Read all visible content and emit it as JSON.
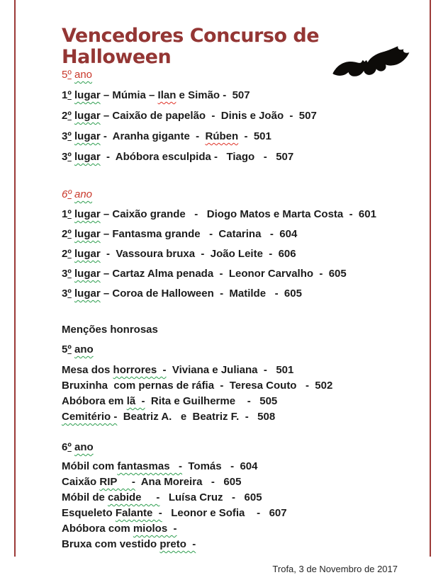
{
  "title": {
    "text": "Vencedores Concurso de Halloween"
  },
  "colors": {
    "title_maroon": "#943634",
    "heading_red": "#c9372a",
    "body_ink": "#1c1c1c",
    "border_red": "#9b3a38",
    "wavy_green": "#2e9e4f",
    "wavy_red": "#e03227"
  },
  "icons": {
    "bat": "bat-silhouette-icon"
  },
  "sections": [
    {
      "name": "vencedores-5-ano",
      "headings": [
        {
          "style": "h-red",
          "parts": [
            {
              "t": "5º ",
              "u": ""
            },
            {
              "t": "ano",
              "u": "green"
            }
          ]
        }
      ],
      "rows": [
        {
          "parts": [
            {
              "t": "1º ",
              "u": ""
            },
            {
              "t": "lugar",
              "u": "green"
            },
            {
              "t": " – Múmia – ",
              "u": ""
            },
            {
              "t": "Ilan",
              "u": "red"
            },
            {
              "t": " e Simão -  507",
              "u": ""
            }
          ]
        },
        {
          "parts": [
            {
              "t": "2º ",
              "u": ""
            },
            {
              "t": "lugar",
              "u": "green"
            },
            {
              "t": " – Caixão de papelão  -  Dinis e João  -  507",
              "u": ""
            }
          ]
        },
        {
          "parts": [
            {
              "t": "3º ",
              "u": ""
            },
            {
              "t": "lugar",
              "u": "green"
            },
            {
              "t": " -  Aranha gigante  -  ",
              "u": ""
            },
            {
              "t": "Rúben",
              "u": "red"
            },
            {
              "t": "  -  501",
              "u": ""
            }
          ]
        },
        {
          "parts": [
            {
              "t": "3º ",
              "u": ""
            },
            {
              "t": "lugar",
              "u": "green"
            },
            {
              "t": "  -  Abóbora esculpida -   Tiago   -   507",
              "u": ""
            }
          ]
        }
      ]
    },
    {
      "name": "vencedores-6-ano",
      "headings": [
        {
          "style": "h-red-italic",
          "parts": [
            {
              "t": "6º ",
              "u": ""
            },
            {
              "t": "ano",
              "u": "green"
            }
          ]
        }
      ],
      "rows": [
        {
          "parts": [
            {
              "t": "1º ",
              "u": ""
            },
            {
              "t": "lugar",
              "u": "green"
            },
            {
              "t": " – Caixão grande   -   Diogo Matos e Marta Costa  -  601",
              "u": ""
            }
          ]
        },
        {
          "parts": [
            {
              "t": "2º ",
              "u": ""
            },
            {
              "t": "lugar",
              "u": "green"
            },
            {
              "t": " – Fantasma grande   -  Catarina   -  604",
              "u": ""
            }
          ]
        },
        {
          "parts": [
            {
              "t": "2º ",
              "u": ""
            },
            {
              "t": "lugar",
              "u": "green"
            },
            {
              "t": "  -  Vassoura bruxa  -  João Leite  -  606",
              "u": ""
            }
          ]
        },
        {
          "parts": [
            {
              "t": "3º ",
              "u": ""
            },
            {
              "t": "lugar",
              "u": "green"
            },
            {
              "t": " – Cartaz Alma penada  -  Leonor Carvalho  -  605",
              "u": ""
            }
          ]
        },
        {
          "parts": [
            {
              "t": "3º ",
              "u": ""
            },
            {
              "t": "lugar",
              "u": "green"
            },
            {
              "t": " – Coroa de Halloween  -  Matilde   -  605",
              "u": ""
            }
          ]
        }
      ]
    },
    {
      "name": "mencoes-honrosas-5-ano",
      "headings": [
        {
          "style": "h-black",
          "parts": [
            {
              "t": "Menções honrosas",
              "u": ""
            }
          ]
        },
        {
          "style": "h-black",
          "parts": [
            {
              "t": "5º ",
              "u": ""
            },
            {
              "t": "ano",
              "u": "green"
            }
          ]
        }
      ],
      "rows": [
        {
          "parts": [
            {
              "t": "Mesa dos ",
              "u": ""
            },
            {
              "t": "horrores  -",
              "u": "green"
            },
            {
              "t": "  Viviana e Juliana  -   501",
              "u": ""
            }
          ]
        },
        {
          "parts": [
            {
              "t": "Bruxinha  com pernas de ráfia  -  Teresa Couto   -  502",
              "u": ""
            }
          ]
        },
        {
          "parts": [
            {
              "t": "Abóbora em ",
              "u": ""
            },
            {
              "t": "lã  -",
              "u": "green"
            },
            {
              "t": "  Rita e Guilherme    -   505",
              "u": ""
            }
          ]
        },
        {
          "parts": [
            {
              "t": "Cemitério -",
              "u": "green"
            },
            {
              "t": "  Beatriz A.   e  Beatriz F.  -   508",
              "u": ""
            }
          ]
        }
      ]
    },
    {
      "name": "mencoes-honrosas-6-ano",
      "headings": [
        {
          "style": "h-black",
          "parts": [
            {
              "t": "6º ",
              "u": ""
            },
            {
              "t": "ano",
              "u": "green"
            }
          ]
        }
      ],
      "rows": [
        {
          "parts": [
            {
              "t": "Móbil com ",
              "u": ""
            },
            {
              "t": "fantasmas   -",
              "u": "green"
            },
            {
              "t": "  Tomás   -  604",
              "u": ""
            }
          ]
        },
        {
          "parts": [
            {
              "t": "Caixão ",
              "u": ""
            },
            {
              "t": "RIP     -",
              "u": "green"
            },
            {
              "t": "  Ana Moreira   -   605",
              "u": ""
            }
          ]
        },
        {
          "parts": [
            {
              "t": "Móbil de ",
              "u": ""
            },
            {
              "t": "cabide     -",
              "u": "green"
            },
            {
              "t": "   Luísa Cruz   -   605",
              "u": ""
            }
          ]
        },
        {
          "parts": [
            {
              "t": "Esqueleto ",
              "u": ""
            },
            {
              "t": "Falante  -",
              "u": "green"
            },
            {
              "t": "   Leonor e Sofia    -   607",
              "u": ""
            }
          ]
        },
        {
          "parts": [
            {
              "t": "Abóbora com ",
              "u": ""
            },
            {
              "t": "miolos  -",
              "u": "green"
            }
          ]
        },
        {
          "parts": [
            {
              "t": "Bruxa com vestido ",
              "u": ""
            },
            {
              "t": "preto  -",
              "u": "green"
            }
          ]
        }
      ]
    }
  ],
  "footer": {
    "text": "Trofa, 3 de Novembro de 2017"
  }
}
